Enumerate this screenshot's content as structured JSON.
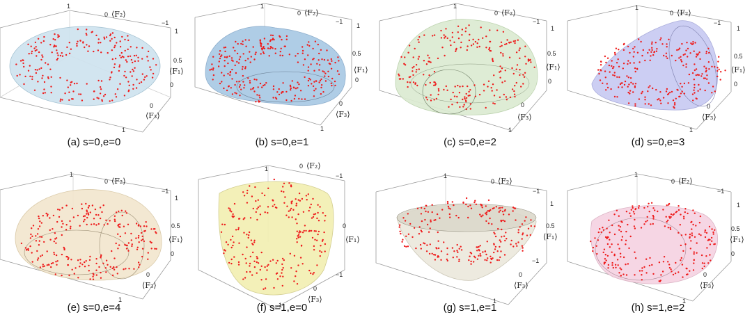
{
  "panels": [
    {
      "caption": "(a) s=0,e=0",
      "color": "#cfe3ef",
      "edge": "#9fbfd0"
    },
    {
      "caption": "(b) s=0,e=1",
      "color": "#a9c9e4",
      "edge": "#86a9c9"
    },
    {
      "caption": "(c) s=0,e=2",
      "color": "#dcebd2",
      "edge": "#b7cfa8"
    },
    {
      "caption": "(d) s=0,e=3",
      "color": "#c8caf2",
      "edge": "#a3a6d8"
    },
    {
      "caption": "(e) s=0,e=4",
      "color": "#f3e7cf",
      "edge": "#d7c6a2"
    },
    {
      "caption": "(f) s=1,e=0",
      "color": "#f2efb3",
      "edge": "#cfc987"
    },
    {
      "caption": "(g) s=1,e=1",
      "color": "#ece9dd",
      "edge": "#c8c3b1"
    },
    {
      "caption": "(h) s=1,e=2",
      "color": "#f6d3e2",
      "edge": "#d8aec0"
    }
  ],
  "axes": {
    "f1": "⟨F₁⟩",
    "f2": "⟨F₂⟩",
    "f3": "⟨F₃⟩",
    "ticks": {
      "one": "1",
      "minus_one": "−1",
      "zero": "0",
      "half": "0.5"
    }
  },
  "colors": {
    "points": "#ee1c1c",
    "box": "#9a9a9a"
  }
}
